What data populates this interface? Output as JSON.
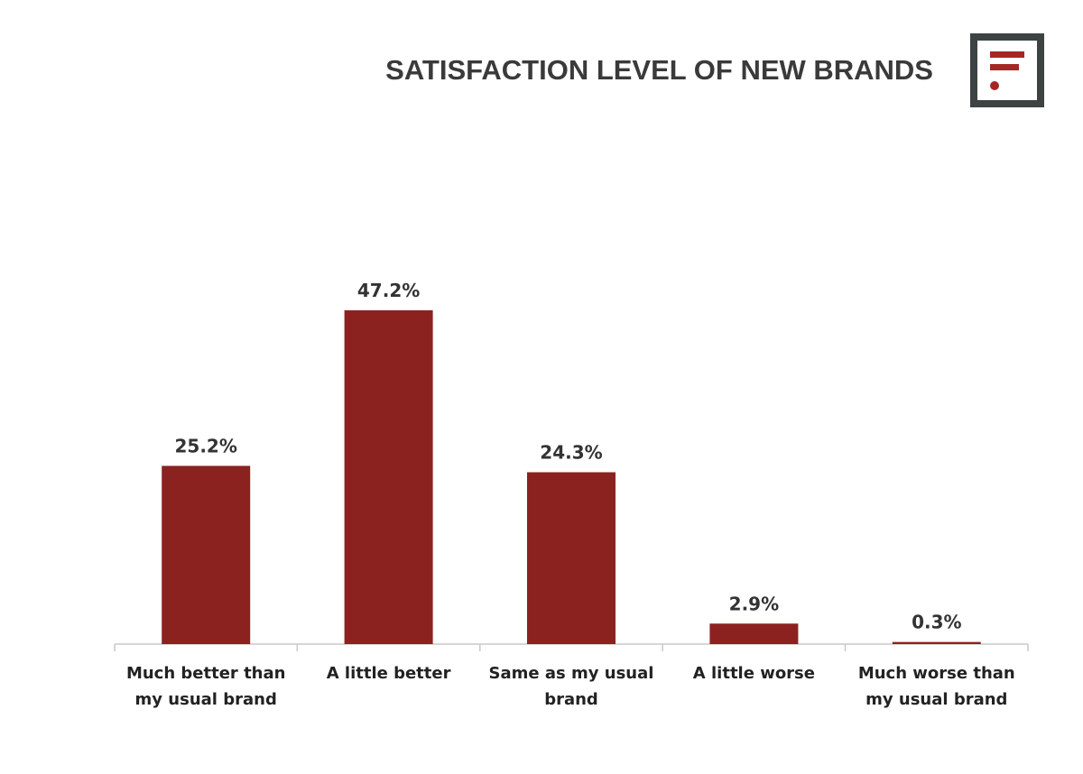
{
  "title": "SATISFACTION LEVEL OF NEW BRANDS",
  "logo_icon": "brand-logo-icon",
  "colors": {
    "bar": "#8b2220",
    "logo_frame": "#3d4242",
    "logo_mark": "#a32825",
    "text": "#333333",
    "axis": "#c8c8c8"
  },
  "chart_data": {
    "type": "bar",
    "title": "SATISFACTION LEVEL OF NEW BRANDS",
    "xlabel": "",
    "ylabel": "",
    "categories": [
      [
        "Much better than",
        "my usual brand"
      ],
      [
        "A little better"
      ],
      [
        "Same as my usual",
        "brand"
      ],
      [
        "A little worse"
      ],
      [
        "Much worse than",
        "my usual brand"
      ]
    ],
    "values": [
      25.2,
      47.2,
      24.3,
      2.9,
      0.3
    ],
    "value_labels": [
      "25.2%",
      "47.2%",
      "24.3%",
      "2.9%",
      "0.3%"
    ],
    "unit": "%",
    "ylim": [
      0,
      50
    ],
    "grid": false,
    "legend": "none"
  }
}
